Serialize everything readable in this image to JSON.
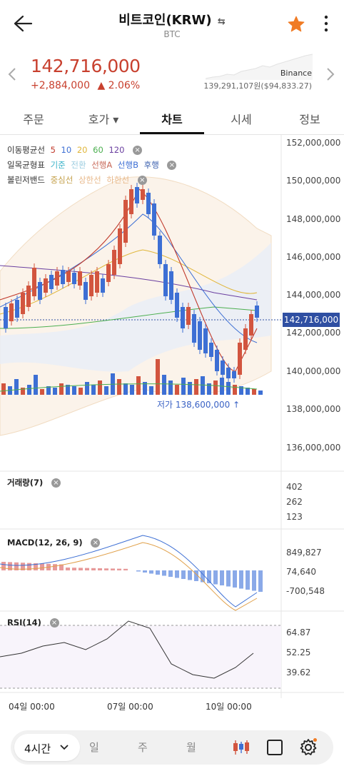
{
  "header": {
    "title": "비트코인(KRW)",
    "subtitle": "BTC",
    "swap_icon": "swap-arrows-icon",
    "back_icon": "back-arrow-icon",
    "favorite_icon": "star-icon",
    "more_icon": "more-vertical-icon"
  },
  "quote": {
    "price": "142,716,000",
    "change": "+2,884,000",
    "change_pct": "▲ 2.06%",
    "exchange": "Binance",
    "exchange_price": "139,291,107원($94,833.27)"
  },
  "tabs": [
    {
      "label": "주문"
    },
    {
      "label": "호가 ▾"
    },
    {
      "label": "차트"
    },
    {
      "label": "시세"
    },
    {
      "label": "정보"
    }
  ],
  "legend": {
    "ma": {
      "label": "이동평균선",
      "p5": "5",
      "p10": "10",
      "p20": "20",
      "p60": "60",
      "p120": "120"
    },
    "ichimoku": {
      "label": "일목균형표",
      "base": "기준",
      "conv": "전환",
      "spanA": "선행A",
      "spanB": "선행B",
      "lag": "후행"
    },
    "bollinger": {
      "label": "볼린저밴드",
      "mid": "중심선",
      "upper": "상한선",
      "lower": "하한선"
    }
  },
  "price_axis": [
    "152,000,000",
    "150,000,000",
    "148,000,000",
    "146,000,000",
    "144,000,000",
    "142,000,000",
    "140,000,000",
    "138,000,000",
    "136,000,000"
  ],
  "current_price_tag": "142,716,000",
  "low_label": "저가 138,600,000",
  "volume": {
    "label": "거래량(7)",
    "ticks": [
      "402",
      "262",
      "123"
    ]
  },
  "macd": {
    "label": "MACD(12, 26, 9)",
    "ticks": [
      "849,827",
      "74,640",
      "-700,548"
    ]
  },
  "rsi": {
    "label": "RSI(14)",
    "ticks": [
      "64.87",
      "52.25",
      "39.62"
    ]
  },
  "x_axis": [
    "04일 00:00",
    "07일 00:00",
    "10일 00:00"
  ],
  "toolbar": {
    "interval": "4시간",
    "day": "일",
    "week": "주",
    "month": "월",
    "candle_icon": "candlestick-icon",
    "square_icon": "square-icon",
    "settings_icon": "gear-icon"
  },
  "colors": {
    "up": "#d2553f",
    "down": "#3d6fd4",
    "accent": "#f07b24"
  }
}
